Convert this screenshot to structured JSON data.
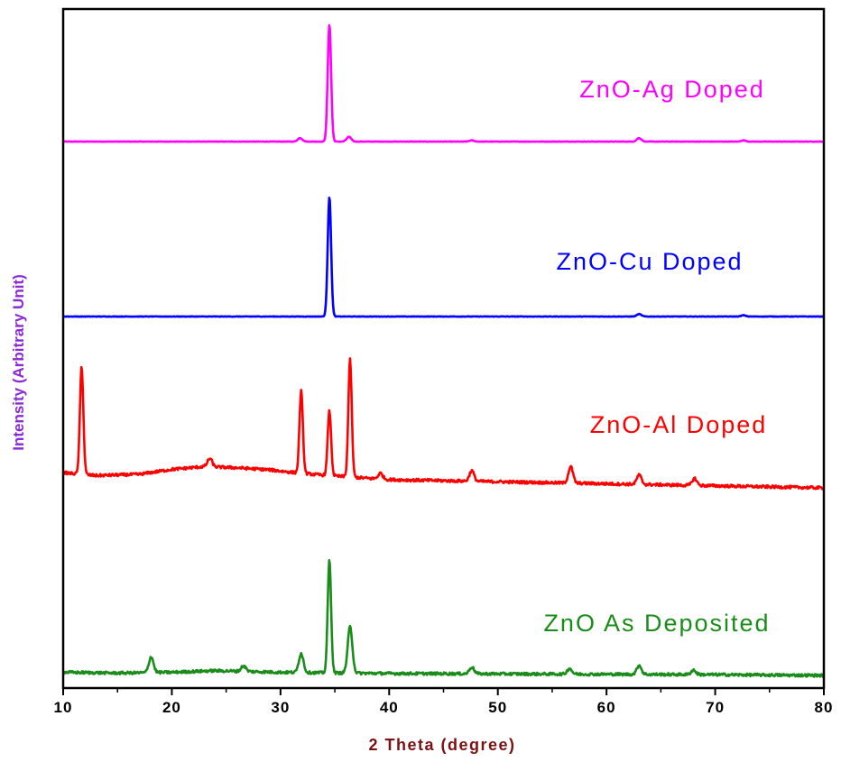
{
  "chart_data": {
    "type": "line",
    "title": "",
    "xlabel": "2 Theta (degree)",
    "ylabel": "Intensity (Arbitrary Unit)",
    "xlim": [
      10,
      80
    ],
    "xticks": [
      "10",
      "20",
      "30",
      "40",
      "50",
      "60",
      "70",
      "80"
    ],
    "yticks_shown": false,
    "grid": false,
    "legend": "none",
    "colors": {
      "xlabel": "#7b1111",
      "ylabel": "#8a2bd6"
    },
    "series": [
      {
        "name": "ZnO-Ag Doped",
        "color": "#ff00ff",
        "baseline": [
          [
            10,
            1.0
          ],
          [
            80,
            1.0
          ]
        ],
        "peaks": [
          [
            31.8,
            0.03
          ],
          [
            34.5,
            1.0
          ],
          [
            36.3,
            0.04
          ],
          [
            47.6,
            0.01
          ],
          [
            63.0,
            0.03
          ],
          [
            72.6,
            0.01
          ]
        ]
      },
      {
        "name": "ZnO-Cu Doped",
        "color": "#0000ff",
        "baseline": [
          [
            10,
            1.0
          ],
          [
            80,
            1.0
          ]
        ],
        "peaks": [
          [
            34.5,
            1.0
          ],
          [
            63.0,
            0.02
          ],
          [
            72.6,
            0.01
          ]
        ]
      },
      {
        "name": "ZnO-Al Doped",
        "color": "#ff0000",
        "baseline": [
          [
            10,
            0.37
          ],
          [
            13,
            0.3
          ],
          [
            17,
            0.33
          ],
          [
            20,
            0.45
          ],
          [
            23,
            0.52
          ],
          [
            26,
            0.49
          ],
          [
            29,
            0.44
          ],
          [
            31,
            0.38
          ],
          [
            33,
            0.33
          ],
          [
            36,
            0.27
          ],
          [
            40,
            0.2
          ],
          [
            50,
            0.15
          ],
          [
            60,
            0.1
          ],
          [
            70,
            0.05
          ],
          [
            80,
            0.0
          ]
        ],
        "peaks": [
          [
            11.7,
            0.92
          ],
          [
            23.5,
            0.07
          ],
          [
            31.9,
            0.7
          ],
          [
            34.5,
            0.55
          ],
          [
            36.4,
            1.0
          ],
          [
            39.2,
            0.05
          ],
          [
            47.6,
            0.09
          ],
          [
            56.7,
            0.14
          ],
          [
            63.0,
            0.08
          ],
          [
            68.1,
            0.06
          ]
        ]
      },
      {
        "name": "ZnO As Deposited",
        "color": "#1a8c1a",
        "baseline": [
          [
            10,
            0.08
          ],
          [
            15,
            0.06
          ],
          [
            20,
            0.08
          ],
          [
            24,
            0.12
          ],
          [
            27,
            0.1
          ],
          [
            30,
            0.08
          ],
          [
            33,
            0.07
          ],
          [
            40,
            0.05
          ],
          [
            50,
            0.04
          ],
          [
            60,
            0.03
          ],
          [
            70,
            0.02
          ],
          [
            80,
            0.0
          ]
        ],
        "peaks": [
          [
            18.1,
            0.14
          ],
          [
            26.6,
            0.05
          ],
          [
            31.9,
            0.17
          ],
          [
            34.5,
            1.0
          ],
          [
            36.4,
            0.41
          ],
          [
            47.6,
            0.06
          ],
          [
            56.6,
            0.05
          ],
          [
            63.0,
            0.08
          ],
          [
            68.0,
            0.04
          ]
        ]
      }
    ]
  }
}
